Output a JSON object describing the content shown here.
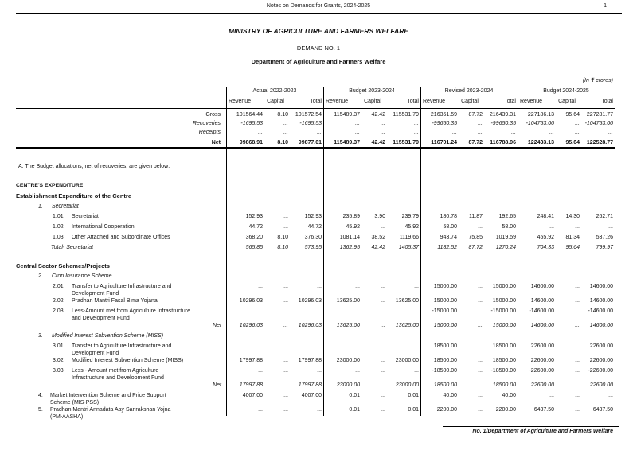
{
  "page_header": {
    "title": "Notes on Demands for Grants, 2024-2025",
    "page_number": "1"
  },
  "titles": {
    "ministry": "MINISTRY OF AGRICULTURE AND FARMERS WELFARE",
    "demand": "DEMAND NO. 1",
    "department": "Department of Agriculture and Farmers Welfare",
    "units_note": "(In ₹ crores)"
  },
  "table": {
    "column_groups": [
      {
        "label": "Actual 2022-2023",
        "subcolumns": [
          "Revenue",
          "Capital",
          "Total"
        ]
      },
      {
        "label": "Budget 2023-2024",
        "subcolumns": [
          "Revenue",
          "Capital",
          "Total"
        ]
      },
      {
        "label": "Revised 2023-2024",
        "subcolumns": [
          "Revenue",
          "Capital",
          "Total"
        ]
      },
      {
        "label": "Budget 2024-2025",
        "subcolumns": [
          "Revenue",
          "Capital",
          "Total"
        ]
      }
    ],
    "summary_rows": [
      {
        "label": "Gross",
        "style": "plain",
        "values": [
          "101564.44",
          "8.10",
          "101572.54",
          "115489.37",
          "42.42",
          "115531.79",
          "216351.59",
          "87.72",
          "216439.31",
          "227186.13",
          "95.64",
          "227281.77"
        ]
      },
      {
        "label": "Recoveries",
        "style": "italic",
        "values": [
          "-1695.53",
          "...",
          "-1695.53",
          "...",
          "...",
          "...",
          "-99650.35",
          "...",
          "-99650.35",
          "-104753.00",
          "...",
          "-104753.00"
        ]
      },
      {
        "label": "Receipts",
        "style": "italic",
        "values": [
          "...",
          "...",
          "...",
          "...",
          "...",
          "...",
          "...",
          "...",
          "...",
          "...",
          "...",
          "..."
        ]
      },
      {
        "label": "Net",
        "style": "bold",
        "values": [
          "99868.91",
          "8.10",
          "99877.01",
          "115489.37",
          "42.42",
          "115531.79",
          "116701.24",
          "87.72",
          "116788.96",
          "122433.13",
          "95.64",
          "122528.77"
        ]
      }
    ],
    "note": "A. The Budget allocations, net of recoveries, are given below:",
    "body": [
      {
        "type": "heading-caps",
        "text": "CENTRE'S EXPENDITURE"
      },
      {
        "type": "heading",
        "text": "Establishment Expenditure of the Centre"
      },
      {
        "type": "section",
        "num": "1.",
        "text": "Secretariat"
      },
      {
        "type": "item",
        "num": "1.01",
        "text": "Secretariat",
        "values": [
          "152.93",
          "...",
          "152.93",
          "235.89",
          "3.90",
          "239.79",
          "180.78",
          "11.87",
          "192.65",
          "248.41",
          "14.30",
          "262.71"
        ]
      },
      {
        "type": "item",
        "num": "1.02",
        "text": "International Cooperation",
        "values": [
          "44.72",
          "...",
          "44.72",
          "45.92",
          "...",
          "45.92",
          "58.00",
          "...",
          "58.00",
          "...",
          "...",
          "..."
        ]
      },
      {
        "type": "item",
        "num": "1.03",
        "text": "Other Attached and Subordinate Offices",
        "values": [
          "368.20",
          "8.10",
          "376.30",
          "1081.14",
          "38.52",
          "1119.66",
          "943.74",
          "75.85",
          "1019.59",
          "455.92",
          "81.34",
          "537.26"
        ]
      },
      {
        "type": "total",
        "text": "Total- Secretariat",
        "values": [
          "565.85",
          "8.10",
          "573.95",
          "1362.95",
          "42.42",
          "1405.37",
          "1182.52",
          "87.72",
          "1270.24",
          "704.33",
          "95.64",
          "799.97"
        ]
      },
      {
        "type": "heading",
        "text": "Central Sector Schemes/Projects"
      },
      {
        "type": "section",
        "num": "2.",
        "text": "Crop Insurance Scheme"
      },
      {
        "type": "item",
        "num": "2.01",
        "text": "Transfer to Agriculture Infrastructure and Development Fund",
        "values": [
          "...",
          "...",
          "...",
          "...",
          "...",
          "...",
          "15000.00",
          "...",
          "15000.00",
          "14600.00",
          "...",
          "14600.00"
        ]
      },
      {
        "type": "item",
        "num": "2.02",
        "text": "Pradhan Mantri Fasal Bima Yojana",
        "values": [
          "10296.03",
          "...",
          "10296.03",
          "13625.00",
          "...",
          "13625.00",
          "15000.00",
          "...",
          "15000.00",
          "14600.00",
          "...",
          "14600.00"
        ]
      },
      {
        "type": "item",
        "num": "2.03",
        "text": "Less-Amount met from Agriculture Infrastructure and Development Fund",
        "values": [
          "...",
          "...",
          "...",
          "...",
          "...",
          "...",
          "-15000.00",
          "...",
          "-15000.00",
          "-14600.00",
          "...",
          "-14600.00"
        ]
      },
      {
        "type": "net",
        "text": "Net",
        "values": [
          "10296.03",
          "...",
          "10296.03",
          "13625.00",
          "...",
          "13625.00",
          "15000.00",
          "...",
          "15000.00",
          "14600.00",
          "...",
          "14600.00"
        ]
      },
      {
        "type": "section",
        "num": "3.",
        "text": "Modified Interest Subvention Scheme (MISS)"
      },
      {
        "type": "item",
        "num": "3.01",
        "text": "Transfer to Agriculture Infrastructure and Development Fund",
        "values": [
          "...",
          "...",
          "...",
          "...",
          "...",
          "...",
          "18500.00",
          "...",
          "18500.00",
          "22600.00",
          "...",
          "22600.00"
        ]
      },
      {
        "type": "item",
        "num": "3.02",
        "text": "Modified Interest Subvention Scheme (MISS)",
        "values": [
          "17997.88",
          "...",
          "17997.88",
          "23000.00",
          "...",
          "23000.00",
          "18500.00",
          "...",
          "18500.00",
          "22600.00",
          "...",
          "22600.00"
        ]
      },
      {
        "type": "item",
        "num": "3.03",
        "text": "Less - Amount met from Agriculture Infrastructure and Development Fund",
        "values": [
          "...",
          "...",
          "...",
          "...",
          "...",
          "...",
          "-18500.00",
          "...",
          "-18500.00",
          "-22600.00",
          "...",
          "-22600.00"
        ]
      },
      {
        "type": "net",
        "text": "Net",
        "values": [
          "17997.88",
          "...",
          "17997.88",
          "23000.00",
          "...",
          "23000.00",
          "18500.00",
          "...",
          "18500.00",
          "22600.00",
          "...",
          "22600.00"
        ]
      },
      {
        "type": "item-top",
        "num": "4.",
        "text": "Market Intervention Scheme and Price Support Scheme (MIS-PSS)",
        "values": [
          "4007.00",
          "...",
          "4007.00",
          "0.01",
          "...",
          "0.01",
          "40.00",
          "...",
          "40.00",
          "...",
          "...",
          "..."
        ]
      },
      {
        "type": "item-top",
        "num": "5.",
        "text": "Pradhan Mantri Annadata Aay Sanrakshan Yojna (PM-AASHA)",
        "values": [
          "...",
          "...",
          "...",
          "0.01",
          "...",
          "0.01",
          "2200.00",
          "...",
          "2200.00",
          "6437.50",
          "...",
          "6437.50"
        ]
      }
    ]
  },
  "footer": {
    "text": "No. 1/Department of Agriculture and Farmers Welfare"
  }
}
